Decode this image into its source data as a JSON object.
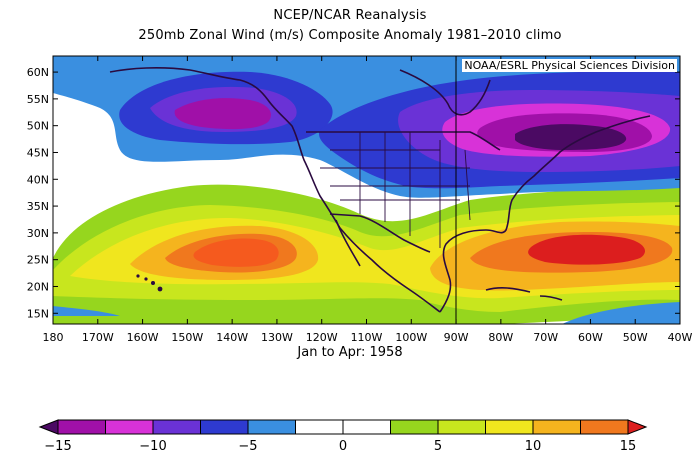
{
  "title": "NCEP/NCAR Reanalysis",
  "subtitle": "250mb Zonal Wind (m/s) Composite Anomaly 1981–2010 climo",
  "credit": "NOAA/ESRL Physical Sciences Division",
  "period_label": "Jan to Apr: 1958",
  "lat_ticks": [
    "60N",
    "55N",
    "50N",
    "45N",
    "40N",
    "35N",
    "30N",
    "25N",
    "20N",
    "15N"
  ],
  "lon_ticks": [
    "180",
    "170W",
    "160W",
    "150W",
    "140W",
    "130W",
    "120W",
    "110W",
    "100W",
    "90W",
    "80W",
    "70W",
    "60W",
    "50W",
    "40W"
  ],
  "colorbar": {
    "labels": [
      "−15",
      "−10",
      "−5",
      "0",
      "5",
      "10",
      "15"
    ],
    "colors": [
      "#4b0a63",
      "#a010a8",
      "#d832d8",
      "#6a32d6",
      "#2e3ad0",
      "#3a8fe0",
      "#ffffff",
      "#ffffff",
      "#96d61e",
      "#c8e61e",
      "#f0e61e",
      "#f5b41e",
      "#f0781e",
      "#dc1e1e"
    ]
  },
  "chart_data": {
    "type": "heatmap",
    "xlabel": "",
    "ylabel": "",
    "xlim": [
      -180,
      -40
    ],
    "ylim": [
      13,
      63
    ],
    "variable": "250mb Zonal Wind anomaly (m/s)",
    "value_range": [
      -15,
      15
    ],
    "features": [
      {
        "sign": "negative",
        "peak": -11,
        "center_lon": -140,
        "center_lat": 50
      },
      {
        "sign": "negative",
        "peak": -14,
        "center_lon": -65,
        "center_lat": 46
      },
      {
        "sign": "positive",
        "peak": 11,
        "center_lon": -135,
        "center_lat": 26
      },
      {
        "sign": "positive",
        "peak": 15,
        "center_lon": -60,
        "center_lat": 28
      }
    ]
  }
}
